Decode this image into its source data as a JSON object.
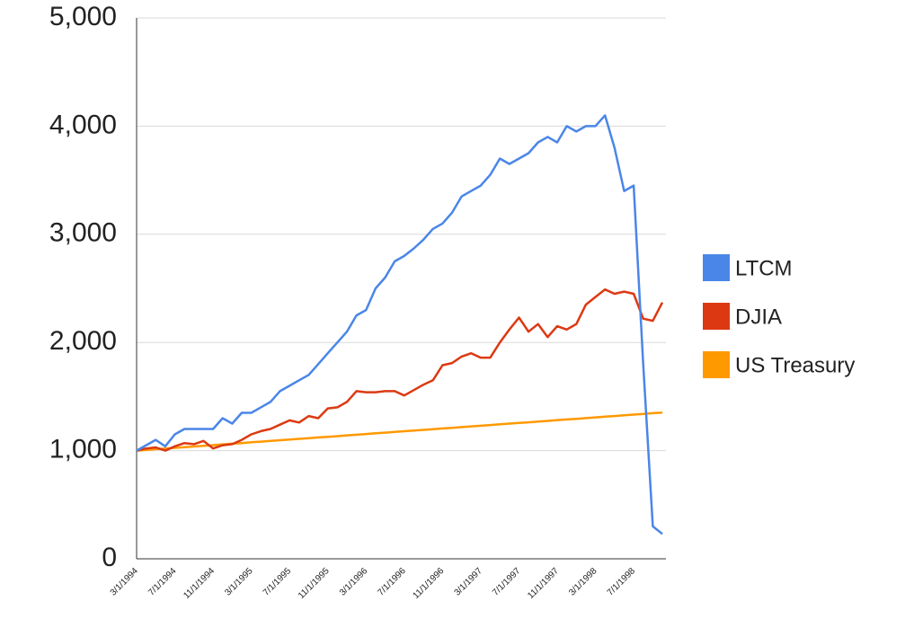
{
  "chart_data": {
    "type": "line",
    "categories": [
      "3/1/1994",
      null,
      null,
      null,
      "7/1/1994",
      null,
      null,
      null,
      "11/1/1994",
      null,
      null,
      null,
      "3/1/1995",
      null,
      null,
      null,
      "7/1/1995",
      null,
      null,
      null,
      "11/1/1995",
      null,
      null,
      null,
      "3/1/1996",
      null,
      null,
      null,
      "7/1/1996",
      null,
      null,
      null,
      "11/1/1996",
      null,
      null,
      null,
      "3/1/1997",
      null,
      null,
      null,
      "7/1/1997",
      null,
      null,
      null,
      "11/1/1997",
      null,
      null,
      null,
      "3/1/1998",
      null,
      null,
      null,
      "7/1/1998",
      null,
      null,
      null
    ],
    "series": [
      {
        "name": "LTCM",
        "color": "#4a86e8",
        "values": [
          1000,
          1050,
          1100,
          1040,
          1150,
          1200,
          1200,
          1200,
          1200,
          1300,
          1250,
          1350,
          1350,
          1400,
          1450,
          1550,
          1600,
          1650,
          1700,
          1800,
          1900,
          2000,
          2100,
          2250,
          2300,
          2500,
          2600,
          2750,
          2800,
          2870,
          2950,
          3050,
          3100,
          3200,
          3350,
          3400,
          3450,
          3550,
          3700,
          3650,
          3700,
          3750,
          3850,
          3900,
          3850,
          4000,
          3950,
          4000,
          4000,
          4100,
          3800,
          3400,
          3450,
          1800,
          300,
          230
        ]
      },
      {
        "name": "DJIA",
        "color": "#dc3912",
        "values": [
          1000,
          1020,
          1030,
          1000,
          1040,
          1070,
          1060,
          1090,
          1020,
          1050,
          1060,
          1100,
          1150,
          1180,
          1200,
          1240,
          1280,
          1260,
          1320,
          1300,
          1390,
          1400,
          1450,
          1550,
          1540,
          1540,
          1550,
          1550,
          1510,
          1560,
          1610,
          1650,
          1790,
          1810,
          1870,
          1900,
          1860,
          1860,
          2000,
          2120,
          2230,
          2100,
          2170,
          2050,
          2150,
          2120,
          2170,
          2350,
          2420,
          2490,
          2450,
          2470,
          2450,
          2220,
          2200,
          2370
        ]
      },
      {
        "name": "US Treasury",
        "color": "#ff9900",
        "values": [
          1000,
          1006,
          1013,
          1019,
          1026,
          1032,
          1038,
          1045,
          1051,
          1058,
          1064,
          1070,
          1077,
          1083,
          1090,
          1096,
          1102,
          1109,
          1115,
          1122,
          1128,
          1134,
          1141,
          1147,
          1154,
          1160,
          1166,
          1173,
          1179,
          1186,
          1192,
          1198,
          1205,
          1211,
          1218,
          1224,
          1230,
          1237,
          1243,
          1250,
          1256,
          1262,
          1269,
          1275,
          1282,
          1288,
          1294,
          1301,
          1307,
          1314,
          1320,
          1326,
          1333,
          1339,
          1346,
          1352
        ]
      }
    ],
    "ylim": [
      0,
      5000
    ],
    "yticks": [
      0,
      {
        "value": 1000,
        "label": "1,000"
      },
      {
        "value": 2000,
        "label": "2,000"
      },
      {
        "value": 3000,
        "label": "3,000"
      },
      {
        "value": 4000,
        "label": "4,000"
      },
      {
        "value": 5000,
        "label": "5,000"
      }
    ],
    "grid": true,
    "legend": "right"
  }
}
